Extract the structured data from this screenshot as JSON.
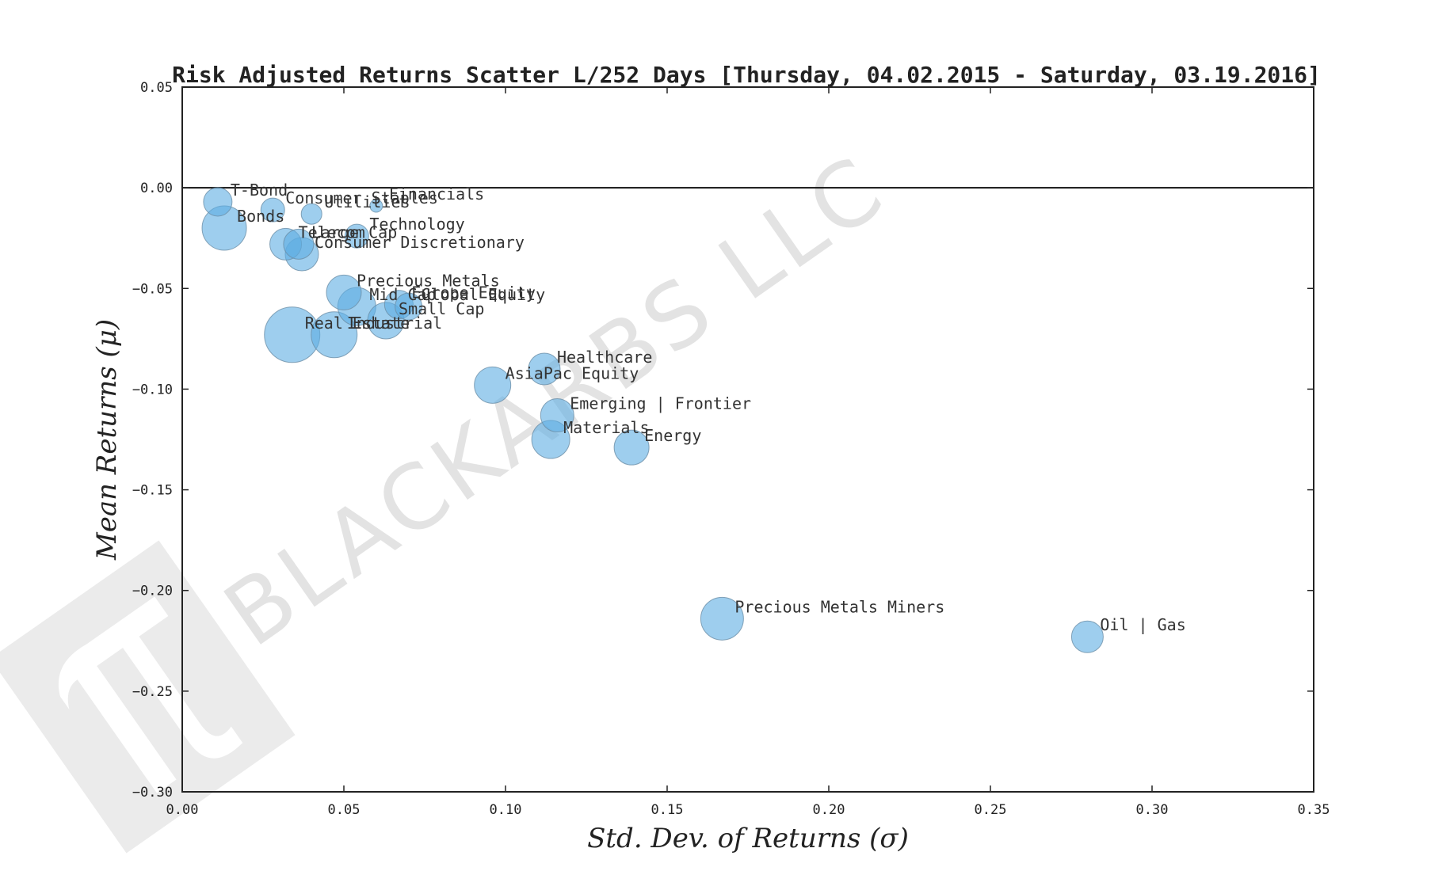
{
  "chart_data": {
    "type": "scatter",
    "title": "Risk Adjusted Returns Scatter L/252 Days [Thursday, 04.02.2015 - Saturday, 03.19.2016]",
    "xlabel": "Std.  Dev.  of  Returns   (σ)",
    "ylabel": "Mean  Returns   (μ)",
    "xlim": [
      0.0,
      0.35
    ],
    "ylim": [
      -0.3,
      0.05
    ],
    "xticks": [
      "0.00",
      "0.05",
      "0.10",
      "0.15",
      "0.20",
      "0.25",
      "0.30",
      "0.35"
    ],
    "yticks": [
      "0.05",
      "0.00",
      "−0.05",
      "−0.10",
      "−0.15",
      "−0.20",
      "−0.25",
      "−0.30"
    ],
    "grid": false,
    "zero_line": true,
    "marker_color": "#5dade2",
    "marker_edge_color": "#6b8fa8",
    "watermark": "BLACKARBS LLC",
    "points": [
      {
        "label": "T-Bond",
        "x": 0.011,
        "y": -0.007,
        "size": 18
      },
      {
        "label": "Bonds",
        "x": 0.013,
        "y": -0.02,
        "size": 28
      },
      {
        "label": "Consumer Staples",
        "x": 0.028,
        "y": -0.011,
        "size": 15
      },
      {
        "label": "Utilities",
        "x": 0.04,
        "y": -0.013,
        "size": 13
      },
      {
        "label": "Financials",
        "x": 0.06,
        "y": -0.009,
        "size": 8
      },
      {
        "label": "Technology",
        "x": 0.054,
        "y": -0.024,
        "size": 15
      },
      {
        "label": "Large Cap",
        "x": 0.036,
        "y": -0.028,
        "size": 19
      },
      {
        "label": "Telecom",
        "x": 0.032,
        "y": -0.028,
        "size": 20
      },
      {
        "label": "Consumer Discretionary",
        "x": 0.037,
        "y": -0.033,
        "size": 21
      },
      {
        "label": "Precious Metals",
        "x": 0.05,
        "y": -0.052,
        "size": 22
      },
      {
        "label": "Mid Cap",
        "x": 0.054,
        "y": -0.059,
        "size": 24
      },
      {
        "label": "Europe Equity",
        "x": 0.067,
        "y": -0.058,
        "size": 18
      },
      {
        "label": "Global Equity",
        "x": 0.07,
        "y": -0.059,
        "size": 17
      },
      {
        "label": "Small Cap",
        "x": 0.063,
        "y": -0.066,
        "size": 23
      },
      {
        "label": "Industrial",
        "x": 0.047,
        "y": -0.073,
        "size": 29
      },
      {
        "label": "Real Estate",
        "x": 0.034,
        "y": -0.073,
        "size": 35
      },
      {
        "label": "Healthcare",
        "x": 0.112,
        "y": -0.09,
        "size": 20
      },
      {
        "label": "AsiaPac Equity",
        "x": 0.096,
        "y": -0.098,
        "size": 23
      },
      {
        "label": "Emerging | Frontier",
        "x": 0.116,
        "y": -0.113,
        "size": 21
      },
      {
        "label": "Materials",
        "x": 0.114,
        "y": -0.125,
        "size": 24
      },
      {
        "label": "Energy",
        "x": 0.139,
        "y": -0.129,
        "size": 22
      },
      {
        "label": "Precious Metals Miners",
        "x": 0.167,
        "y": -0.214,
        "size": 27
      },
      {
        "label": "Oil | Gas",
        "x": 0.28,
        "y": -0.223,
        "size": 20
      }
    ]
  }
}
